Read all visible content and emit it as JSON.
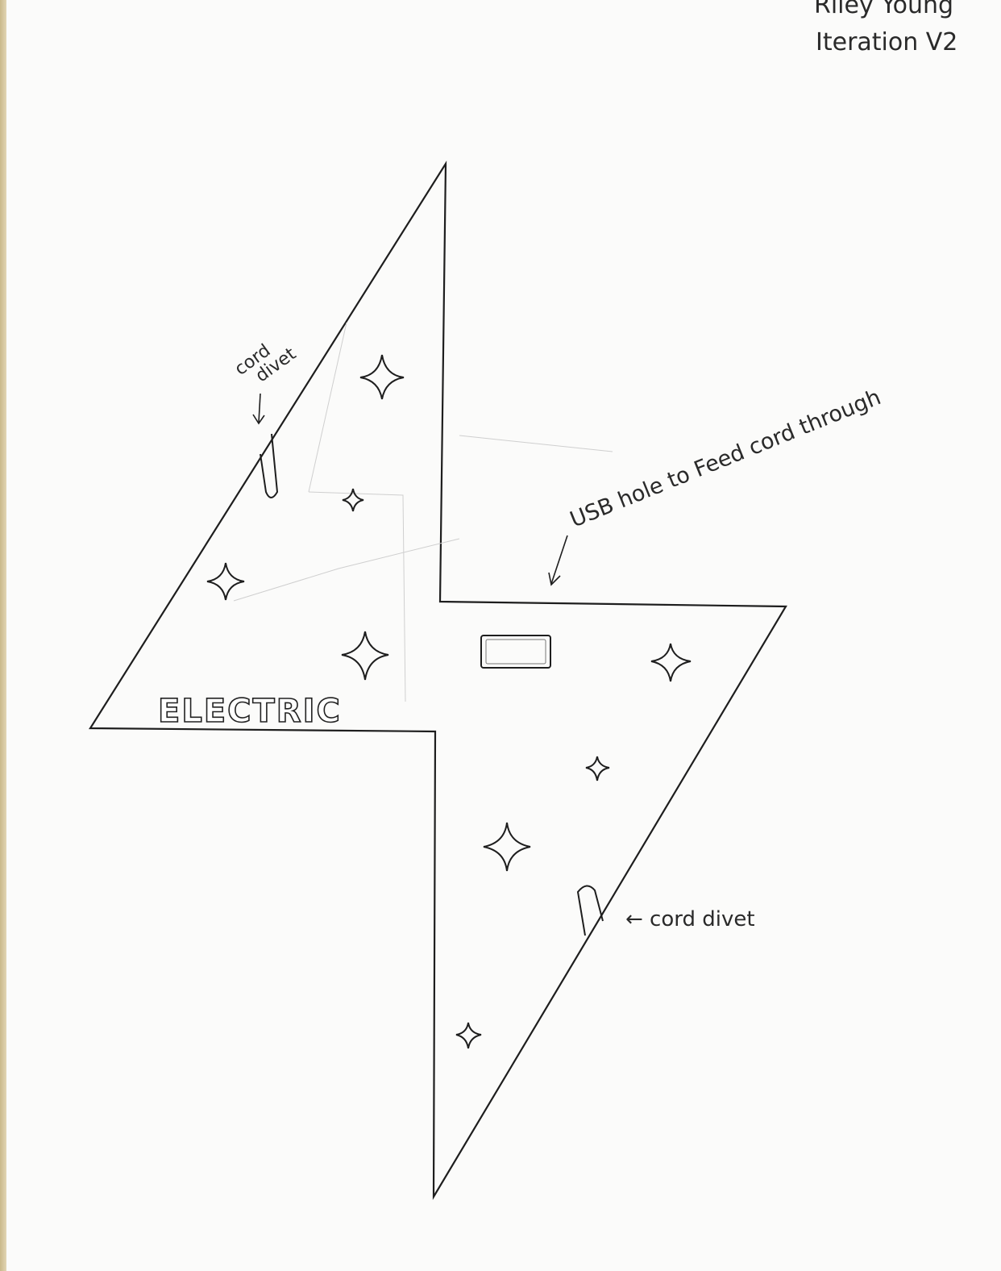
{
  "header": {
    "name": "Riley Young",
    "iteration": "Iteration V2"
  },
  "shape": {
    "type": "lightning-bolt",
    "label": "ELECTRIC"
  },
  "annotations": {
    "cord_divet_top_line1": "cord",
    "cord_divet_top_line2": "divet",
    "usb_hole": "USB hole to Feed cord through",
    "cord_divet_bottom": "← cord divet"
  },
  "features": {
    "usb_hole": "rectangle",
    "sparkles": "star",
    "cord_divets": "slot"
  }
}
